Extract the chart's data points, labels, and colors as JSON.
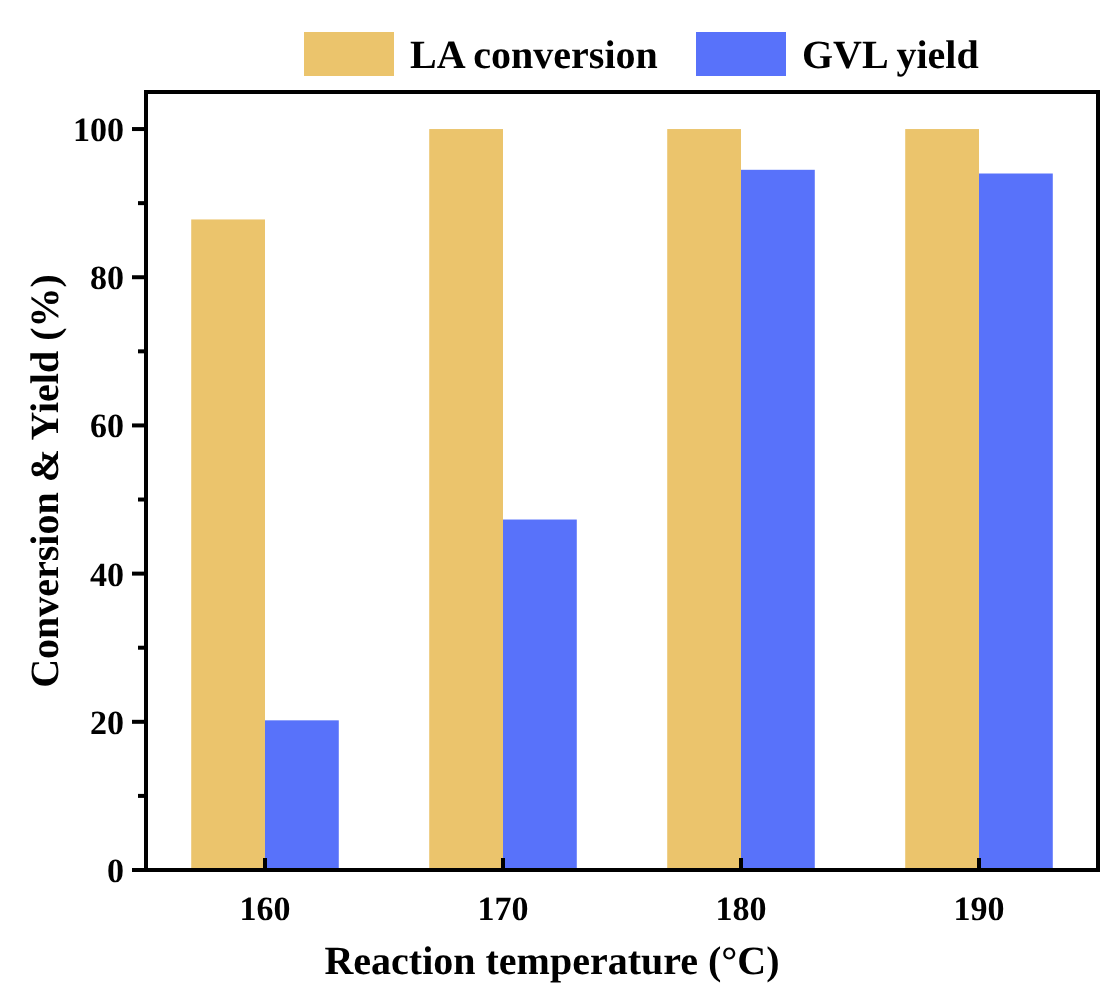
{
  "chart_data": {
    "type": "bar",
    "xlabel": "Reaction temperature (°C)",
    "ylabel": "Conversion & Yield (%)",
    "categories": [
      "160",
      "170",
      "180",
      "190"
    ],
    "series": [
      {
        "name": "LA conversion",
        "color": "#ebc46c",
        "values": [
          87.8,
          100,
          100,
          100
        ]
      },
      {
        "name": "GVL yield",
        "color": "#5872fa",
        "values": [
          20.2,
          47.3,
          94.5,
          94
        ]
      }
    ],
    "ylim": [
      0,
      105
    ],
    "yticks": [
      0,
      {
        "value": 10,
        "label": null
      },
      20,
      {
        "value": 30,
        "label": null
      },
      40,
      {
        "value": 50,
        "label": null
      },
      60,
      {
        "value": 70,
        "label": null
      },
      80,
      {
        "value": 90,
        "label": null
      },
      100
    ],
    "legend": "top",
    "grid": false
  }
}
